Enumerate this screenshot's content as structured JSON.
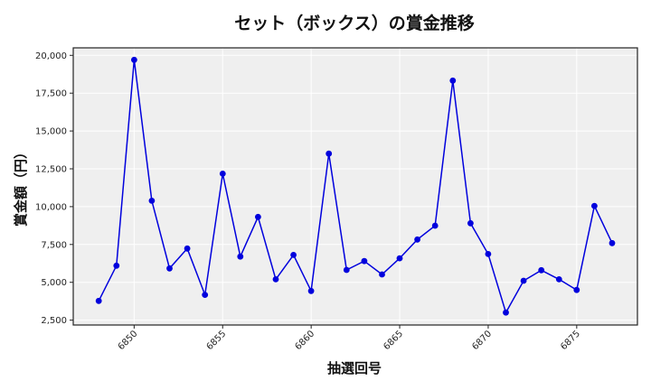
{
  "chart_data": {
    "type": "line",
    "title": "セット（ボックス）の賞金推移",
    "xlabel": "抽選回号",
    "ylabel": "賞金額（円）",
    "x": [
      6848,
      6849,
      6850,
      6851,
      6852,
      6853,
      6854,
      6855,
      6856,
      6857,
      6858,
      6859,
      6860,
      6861,
      6862,
      6863,
      6864,
      6865,
      6866,
      6867,
      6868,
      6869,
      6870,
      6871,
      6872,
      6873,
      6874,
      6875,
      6876,
      6877
    ],
    "series": [
      {
        "name": "賞金額",
        "color": "#0000dd",
        "marker": "circle",
        "values": [
          3770,
          6100,
          19700,
          10390,
          5920,
          7230,
          4170,
          12180,
          6700,
          9320,
          5200,
          6810,
          4430,
          13500,
          5820,
          6400,
          5520,
          6590,
          7830,
          8740,
          18330,
          8900,
          6870,
          3000,
          5100,
          5800,
          5200,
          4490,
          10050,
          7590
        ]
      }
    ],
    "xticks": [
      6850,
      6855,
      6860,
      6865,
      6870,
      6875
    ],
    "yticks": [
      2500,
      5000,
      7500,
      10000,
      12500,
      15000,
      17500,
      20000
    ],
    "ytick_labels": [
      "2,500",
      "5,000",
      "7,500",
      "10,000",
      "12,500",
      "15,000",
      "17,500",
      "20,000"
    ],
    "xlim": [
      6846.56,
      6878.43
    ],
    "ylim": [
      2178,
      20495
    ],
    "grid": true,
    "legend": null,
    "plot_background": "#efefef",
    "grid_color": "#ffffff"
  }
}
